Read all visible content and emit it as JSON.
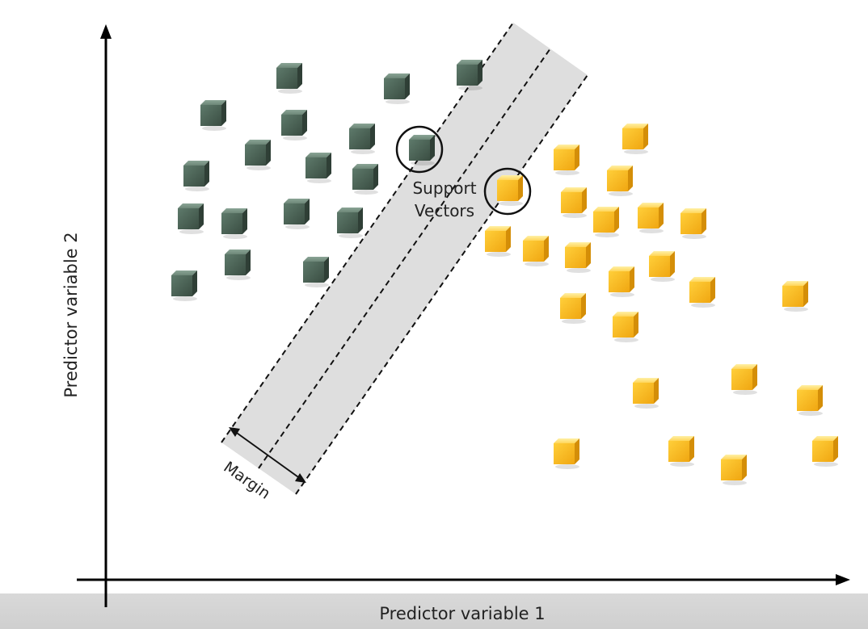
{
  "axes": {
    "xlabel": "Predictor variable 1",
    "ylabel": "Predictor variable 2"
  },
  "annotations": {
    "support_vectors_line1": "Support",
    "support_vectors_line2": "Vectors",
    "margin": "Margin"
  },
  "classes": [
    {
      "name": "green",
      "color": "#4f6b5b",
      "count": 18
    },
    {
      "name": "yellow",
      "color": "#f3b320",
      "count": 25
    }
  ],
  "colors": {
    "band": "#dedede",
    "axis": "#000000"
  }
}
